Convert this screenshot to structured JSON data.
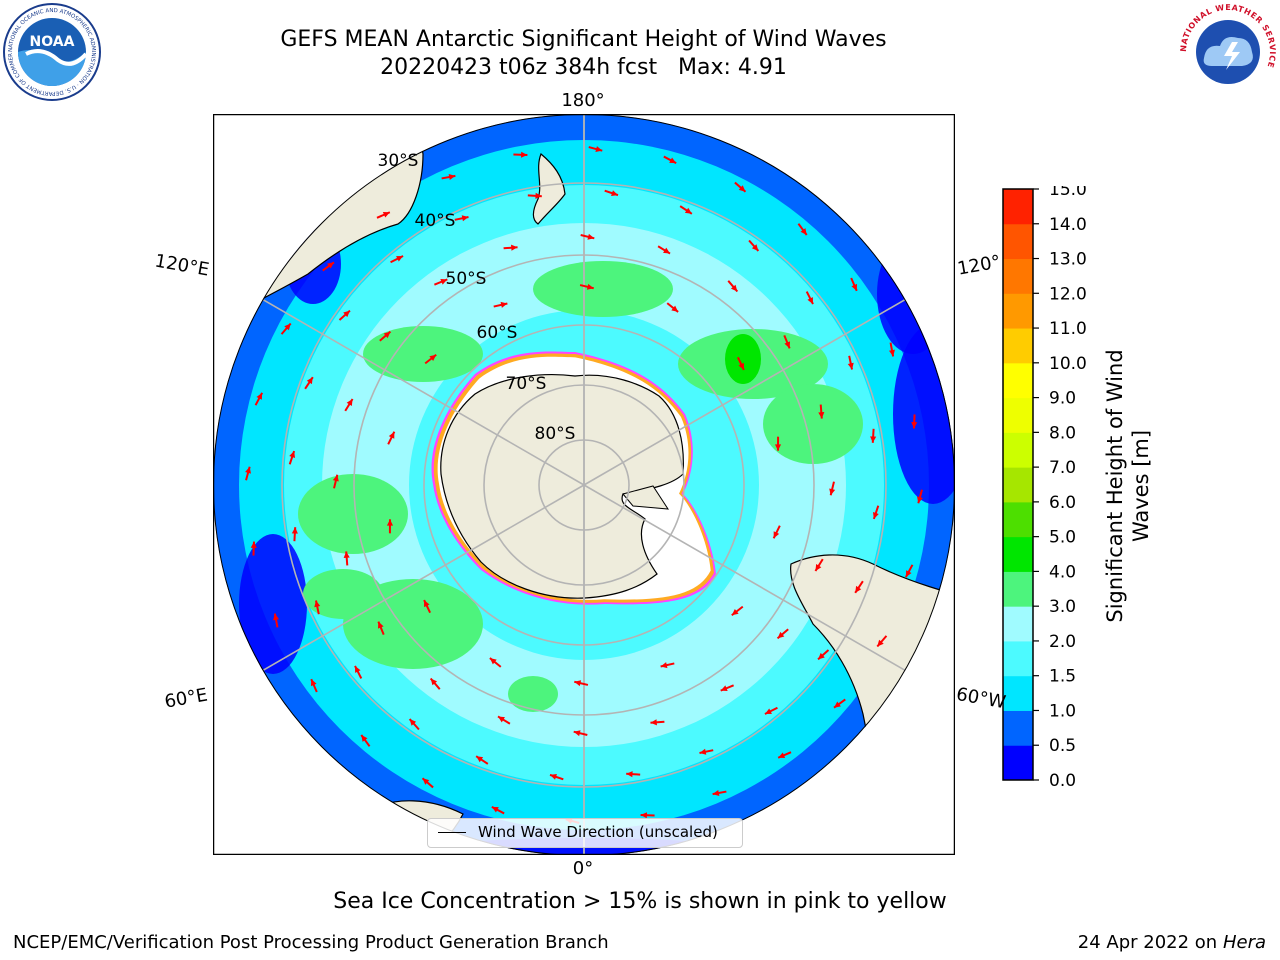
{
  "title": {
    "line1": "GEFS MEAN Antarctic Significant Height of Wind Waves",
    "line2": "20220423 t06z 384h fcst   Max: 4.91"
  },
  "logos": {
    "noaa": {
      "text": "NOAA",
      "ring_text": "NATIONAL OCEANIC AND ATMOSPHERIC ADMINISTRATION · U.S. DEPARTMENT OF COMMERCE"
    },
    "nws": {
      "ring_text": "NATIONAL WEATHER SERVICE"
    }
  },
  "map": {
    "projection": "south-polar-stereographic",
    "meridian_labels": {
      "top": "180°",
      "bottom": "0°",
      "left_upper": "120°E",
      "left_lower": "60°E",
      "right_upper": "120°",
      "right_lower": "60°W"
    },
    "latitude_labels": [
      "30°S",
      "40°S",
      "50°S",
      "60°S",
      "70°S",
      "80°S"
    ],
    "legend": {
      "label": "Wind Wave Direction (unscaled)"
    },
    "colors": {
      "land": "#eeecdc",
      "ice_edge": "#ff44ff",
      "arrow": "#ff0000",
      "grid": "#b4b4b4"
    }
  },
  "colorbar": {
    "label": "Significant Height of Wind Waves [m]",
    "ticks": [
      "0.0",
      "0.5",
      "1.0",
      "1.5",
      "2.0",
      "3.0",
      "4.0",
      "5.0",
      "6.0",
      "7.0",
      "8.0",
      "9.0",
      "10.0",
      "11.0",
      "12.0",
      "13.0",
      "14.0",
      "15.0"
    ],
    "colors": [
      "#0000ff",
      "#0065ff",
      "#00e6ff",
      "#4cfaff",
      "#a0fbff",
      "#4df47d",
      "#00e600",
      "#4ddf00",
      "#a6e600",
      "#ccff00",
      "#eeff00",
      "#ffff00",
      "#ffcc00",
      "#ff9900",
      "#ff7700",
      "#ff5500",
      "#ff2200"
    ]
  },
  "subtitle": "Sea Ice Concentration > 15% is shown in pink to yellow",
  "footer": {
    "credit": "NCEP/EMC/Verification Post Processing Product Generation Branch",
    "date": "24 Apr 2022 on",
    "host": "Hera"
  }
}
